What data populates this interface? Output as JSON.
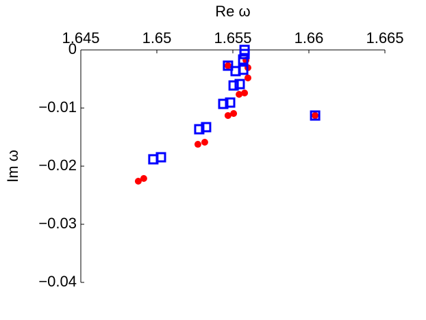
{
  "chart_data": {
    "type": "scatter",
    "xlabel": "Re ω",
    "ylabel": "Im ω",
    "xlim": [
      1.645,
      1.665
    ],
    "xticks": [
      1.645,
      1.65,
      1.655,
      1.66,
      1.665
    ],
    "ylim": [
      -0.04,
      0
    ],
    "yticks": [
      {
        "value": -0.04,
        "label": "−0.04"
      },
      {
        "value": -0.03,
        "label": "−0.03"
      },
      {
        "value": -0.02,
        "label": "−0.02"
      },
      {
        "value": -0.01,
        "label": "−0.01"
      },
      {
        "value": 0,
        "label": "0"
      }
    ],
    "x_axis_position": "top",
    "grid": false,
    "series": [
      {
        "color": "#ff0000",
        "marker": "circle",
        "x": [
          1.64878,
          1.64914,
          1.6527,
          1.65315,
          1.65468,
          1.65505,
          1.65541,
          1.65577,
          1.65599,
          1.65599,
          1.65586,
          1.65468,
          1.66041
        ],
        "values": [
          -0.02259,
          -0.02212,
          -0.01624,
          -0.01588,
          -0.01129,
          -0.01094,
          -0.00765,
          -0.00741,
          -0.00482,
          -0.00306,
          -0.00176,
          -0.00271,
          -0.01129
        ]
      },
      {
        "color": "#0000ff",
        "marker": "square",
        "x": [
          1.64977,
          1.65027,
          1.65279,
          1.65324,
          1.65437,
          1.65482,
          1.65505,
          1.65545,
          1.65518,
          1.65568,
          1.65468,
          1.65568,
          1.65577,
          1.65577,
          1.66041
        ],
        "values": [
          -0.01882,
          -0.01847,
          -0.01365,
          -0.01329,
          -0.00929,
          -0.00906,
          -0.00612,
          -0.00588,
          -0.00365,
          -0.00341,
          -0.00271,
          -0.00165,
          -0.00071,
          0,
          -0.01129
        ]
      }
    ]
  }
}
